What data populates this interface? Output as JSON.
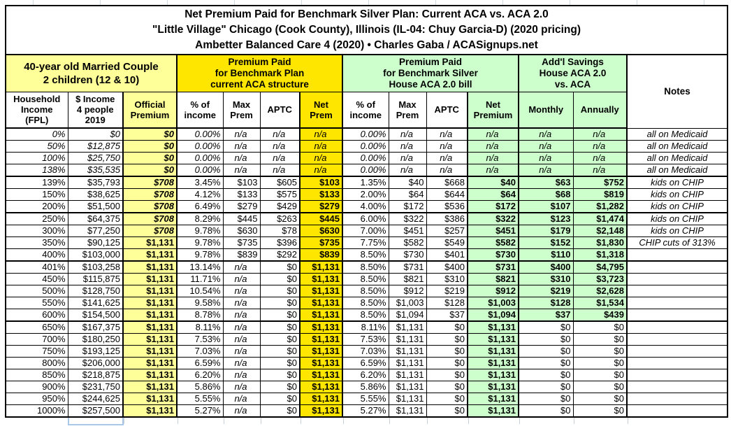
{
  "title": {
    "line1": "Net Premium Paid for Benchmark Silver Plan: Current ACA vs. ACA 2.0",
    "line2": "\"Little Village\" Chicago (Cook County), Illinois (IL-04: Chuy Garcia-D) (2020 pricing)",
    "line3": "Ambetter Balanced Care 4 (2020) • Charles Gaba / ACASignups.net"
  },
  "header_groups": {
    "household": "40-year old Married Couple\n2 children (12 & 10)",
    "current_aca": "Premium Paid\nfor Benchmark Plan\ncurrent ACA structure",
    "aca2": "Premium Paid\nfor Benchmark Silver\nHouse ACA 2.0 bill",
    "savings": "Add'l Savings\nHouse ACA 2.0\nvs. ACA",
    "notes": "Notes"
  },
  "column_labels": [
    "Household\nIncome\n(FPL)",
    "$ Income\n4 people\n2019",
    "Official\nPremium",
    "% of\nincome",
    "Max\nPrem",
    "APTC",
    "Net\nPrem",
    "% of\nincome",
    "Max\nPrem",
    "APTC",
    "Net\nPremium",
    "Monthly",
    "Annually"
  ],
  "rows": [
    {
      "cells": [
        "0%",
        "$0",
        "$0",
        "0.00%",
        "n/a",
        "n/a",
        "n/a",
        "0.00%",
        "n/a",
        "n/a",
        "n/a",
        "n/a",
        "n/a",
        "all on Medicaid"
      ],
      "italic": true,
      "official_italic": true
    },
    {
      "cells": [
        "50%",
        "$12,875",
        "$0",
        "0.00%",
        "n/a",
        "n/a",
        "n/a",
        "0.00%",
        "n/a",
        "n/a",
        "n/a",
        "n/a",
        "n/a",
        "all on Medicaid"
      ],
      "italic": true,
      "official_italic": true
    },
    {
      "cells": [
        "100%",
        "$25,750",
        "$0",
        "0.00%",
        "n/a",
        "n/a",
        "n/a",
        "0.00%",
        "n/a",
        "n/a",
        "n/a",
        "n/a",
        "n/a",
        "all on Medicaid"
      ],
      "italic": true,
      "official_italic": true
    },
    {
      "cells": [
        "138%",
        "$35,535",
        "$0",
        "0.00%",
        "n/a",
        "n/a",
        "n/a",
        "0.00%",
        "n/a",
        "n/a",
        "n/a",
        "n/a",
        "n/a",
        "all on Medicaid"
      ],
      "italic": true,
      "official_italic": true,
      "thick_bottom": true
    },
    {
      "cells": [
        "139%",
        "$35,793",
        "$708",
        "3.45%",
        "$103",
        "$605",
        "$103",
        "1.35%",
        "$40",
        "$668",
        "$40",
        "$63",
        "$752",
        "kids on CHIP"
      ],
      "official_italic": true
    },
    {
      "cells": [
        "150%",
        "$38,625",
        "$708",
        "4.12%",
        "$133",
        "$575",
        "$133",
        "2.00%",
        "$64",
        "$644",
        "$64",
        "$68",
        "$819",
        "kids on CHIP"
      ],
      "official_italic": true
    },
    {
      "cells": [
        "200%",
        "$51,500",
        "$708",
        "6.49%",
        "$279",
        "$429",
        "$279",
        "4.00%",
        "$172",
        "$536",
        "$172",
        "$107",
        "$1,282",
        "kids on CHIP"
      ],
      "official_italic": true,
      "thick_bottom": true
    },
    {
      "cells": [
        "250%",
        "$64,375",
        "$708",
        "8.29%",
        "$445",
        "$263",
        "$445",
        "6.00%",
        "$322",
        "$386",
        "$322",
        "$123",
        "$1,474",
        "kids on CHIP"
      ],
      "official_italic": true
    },
    {
      "cells": [
        "300%",
        "$77,250",
        "$708",
        "9.78%",
        "$630",
        "$78",
        "$630",
        "7.00%",
        "$451",
        "$257",
        "$451",
        "$179",
        "$2,148",
        "kids on CHIP"
      ],
      "official_italic": true
    },
    {
      "cells": [
        "350%",
        "$90,125",
        "$1,131",
        "9.78%",
        "$735",
        "$396",
        "$735",
        "7.75%",
        "$582",
        "$549",
        "$582",
        "$152",
        "$1,830",
        "CHIP cuts of 313%"
      ]
    },
    {
      "cells": [
        "400%",
        "$103,000",
        "$1,131",
        "9.78%",
        "$839",
        "$292",
        "$839",
        "8.50%",
        "$730",
        "$401",
        "$730",
        "$110",
        "$1,318",
        ""
      ],
      "thick_bottom": true
    },
    {
      "cells": [
        "401%",
        "$103,258",
        "$1,131",
        "13.14%",
        "n/a",
        "$0",
        "$1,131",
        "8.50%",
        "$731",
        "$400",
        "$731",
        "$400",
        "$4,795",
        ""
      ]
    },
    {
      "cells": [
        "450%",
        "$115,875",
        "$1,131",
        "11.71%",
        "n/a",
        "$0",
        "$1,131",
        "8.50%",
        "$821",
        "$310",
        "$821",
        "$310",
        "$3,723",
        ""
      ]
    },
    {
      "cells": [
        "500%",
        "$128,750",
        "$1,131",
        "10.54%",
        "n/a",
        "$0",
        "$1,131",
        "8.50%",
        "$912",
        "$219",
        "$912",
        "$219",
        "$2,628",
        ""
      ]
    },
    {
      "cells": [
        "550%",
        "$141,625",
        "$1,131",
        "9.58%",
        "n/a",
        "$0",
        "$1,131",
        "8.50%",
        "$1,003",
        "$128",
        "$1,003",
        "$128",
        "$1,534",
        ""
      ]
    },
    {
      "cells": [
        "600%",
        "$154,500",
        "$1,131",
        "8.78%",
        "n/a",
        "$0",
        "$1,131",
        "8.50%",
        "$1,094",
        "$37",
        "$1,094",
        "$37",
        "$439",
        ""
      ],
      "thick_bottom": true
    },
    {
      "cells": [
        "650%",
        "$167,375",
        "$1,131",
        "8.11%",
        "n/a",
        "$0",
        "$1,131",
        "8.11%",
        "$1,131",
        "$0",
        "$1,131",
        "$0",
        "$0",
        ""
      ],
      "savings_plain": true
    },
    {
      "cells": [
        "700%",
        "$180,250",
        "$1,131",
        "7.53%",
        "n/a",
        "$0",
        "$1,131",
        "7.53%",
        "$1,131",
        "$0",
        "$1,131",
        "$0",
        "$0",
        ""
      ],
      "savings_plain": true
    },
    {
      "cells": [
        "750%",
        "$193,125",
        "$1,131",
        "7.03%",
        "n/a",
        "$0",
        "$1,131",
        "7.03%",
        "$1,131",
        "$0",
        "$1,131",
        "$0",
        "$0",
        ""
      ],
      "savings_plain": true
    },
    {
      "cells": [
        "800%",
        "$206,000",
        "$1,131",
        "6.59%",
        "n/a",
        "$0",
        "$1,131",
        "6.59%",
        "$1,131",
        "$0",
        "$1,131",
        "$0",
        "$0",
        ""
      ],
      "savings_plain": true
    },
    {
      "cells": [
        "850%",
        "$218,875",
        "$1,131",
        "6.20%",
        "n/a",
        "$0",
        "$1,131",
        "6.20%",
        "$1,131",
        "$0",
        "$1,131",
        "$0",
        "$0",
        ""
      ],
      "savings_plain": true
    },
    {
      "cells": [
        "900%",
        "$231,750",
        "$1,131",
        "5.86%",
        "n/a",
        "$0",
        "$1,131",
        "5.86%",
        "$1,131",
        "$0",
        "$1,131",
        "$0",
        "$0",
        ""
      ],
      "savings_plain": true
    },
    {
      "cells": [
        "950%",
        "$244,625",
        "$1,131",
        "5.55%",
        "n/a",
        "$0",
        "$1,131",
        "5.55%",
        "$1,131",
        "$0",
        "$1,131",
        "$0",
        "$0",
        ""
      ],
      "savings_plain": true
    },
    {
      "cells": [
        "1000%",
        "$257,500",
        "$1,131",
        "5.27%",
        "n/a",
        "$0",
        "$1,131",
        "5.27%",
        "$1,131",
        "$0",
        "$1,131",
        "$0",
        "$0",
        ""
      ],
      "savings_plain": true
    }
  ],
  "colors": {
    "bright_yellow": "#FFE600",
    "pale_yellow": "#FFFF99",
    "pale_green": "#CCFFCC",
    "border": "#000000",
    "selection_blue": "#A9C7E7",
    "gridline_gray": "#C9CFD6"
  }
}
